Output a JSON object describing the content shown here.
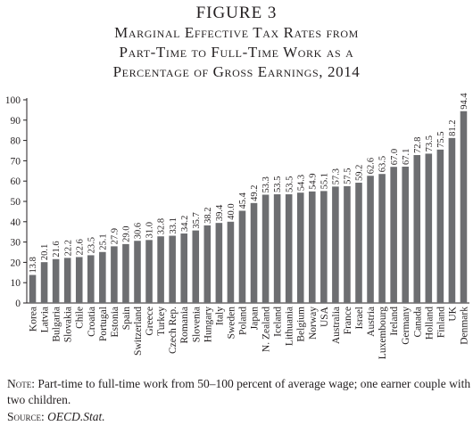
{
  "figure": {
    "label": "FIGURE 3",
    "title_lines": [
      "Marginal Effective Tax Rates from",
      "Part-Time to Full-Time Work as a",
      "Percentage of Gross Earnings, 2014"
    ]
  },
  "note": {
    "lead": "Note:",
    "text": " Part-time to full-time work from 50–100 percent of average wage; one earner couple with two children."
  },
  "source": {
    "lead": "Source:",
    "text": "OECD.Stat."
  },
  "colors": {
    "bar": "#6d6e71",
    "axis": "#231f20"
  },
  "chart_data": {
    "type": "bar",
    "ylim": [
      0,
      100
    ],
    "yticks": [
      0,
      10,
      20,
      30,
      40,
      50,
      60,
      70,
      80,
      90,
      100
    ],
    "grid": false,
    "categories": [
      "Korea",
      "Latvia",
      "Bulgaria",
      "Slovakia",
      "Chile",
      "Croatia",
      "Portugal",
      "Estonia",
      "Spain",
      "Switzerland",
      "Greece",
      "Turkey",
      "Czech Rep.",
      "Romania",
      "Slovenia",
      "Hungary",
      "Italy",
      "Sweden",
      "Poland",
      "Japan",
      "N. Zealand",
      "Iceland",
      "Lithuania",
      "Belgium",
      "Norway",
      "USA",
      "Australia",
      "France",
      "Israel",
      "Austria",
      "Luxembourg",
      "Ireland",
      "Germany",
      "Canada",
      "Holland",
      "Finland",
      "UK",
      "Denmark"
    ],
    "values": [
      13.8,
      20.1,
      21.6,
      22.2,
      22.6,
      23.5,
      25.1,
      27.9,
      29.0,
      30.6,
      31.0,
      32.8,
      33.1,
      34.2,
      35.7,
      38.2,
      39.4,
      40.0,
      45.4,
      49.2,
      53.3,
      53.5,
      53.5,
      54.3,
      54.9,
      55.1,
      57.3,
      57.5,
      59.2,
      62.6,
      63.5,
      67.0,
      67.1,
      72.8,
      73.5,
      75.5,
      81.2,
      94.4
    ],
    "value_labels": [
      "13.8",
      "20.1",
      "21.6",
      "22.2",
      "22.6",
      "23.5",
      "25.1",
      "27.9",
      "29.0",
      "30.6",
      "31.0",
      "32.8",
      "33.1",
      "34.2",
      "35.7",
      "38.2",
      "39.4",
      "40.0",
      "45.4",
      "49.2",
      "53.3",
      "53.5",
      "53.5",
      "54.3",
      "54.9",
      "55.1",
      "57.3",
      "57.5",
      "59.2",
      "62.6",
      "63.5",
      "67.0",
      "67.1",
      "72.8",
      "73.5",
      "75.5",
      "81.2",
      "94.4"
    ]
  }
}
